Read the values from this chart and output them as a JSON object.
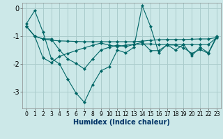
{
  "xlabel": "Humidex (Indice chaleur)",
  "background_color": "#cce8e8",
  "grid_color": "#aacccc",
  "line_color": "#006666",
  "x": [
    0,
    1,
    2,
    3,
    4,
    5,
    6,
    7,
    8,
    9,
    10,
    11,
    12,
    13,
    14,
    15,
    16,
    17,
    18,
    19,
    20,
    21,
    22,
    23
  ],
  "line1": [
    -0.55,
    -0.08,
    -0.85,
    -1.8,
    -2.0,
    -2.55,
    -3.05,
    -3.38,
    -2.75,
    -2.25,
    -2.1,
    -1.5,
    -1.6,
    -1.4,
    0.1,
    -0.65,
    -1.6,
    -1.3,
    -1.5,
    -1.3,
    -1.7,
    -1.4,
    -1.6,
    -1.0
  ],
  "line2": [
    -0.65,
    -1.0,
    -1.1,
    -1.15,
    -1.17,
    -1.18,
    -1.19,
    -1.2,
    -1.2,
    -1.2,
    -1.2,
    -1.2,
    -1.2,
    -1.2,
    -1.18,
    -1.15,
    -1.13,
    -1.12,
    -1.12,
    -1.12,
    -1.11,
    -1.1,
    -1.1,
    -1.05
  ],
  "line3": [
    -0.65,
    -1.0,
    -1.78,
    -1.95,
    -1.72,
    -1.62,
    -1.52,
    -1.42,
    -1.33,
    -1.25,
    -1.32,
    -1.38,
    -1.32,
    -1.3,
    -1.28,
    -1.28,
    -1.3,
    -1.3,
    -1.3,
    -1.3,
    -1.3,
    -1.3,
    -1.3,
    -1.05
  ],
  "line4": [
    -0.65,
    -1.0,
    -1.1,
    -1.1,
    -1.5,
    -1.82,
    -1.98,
    -2.18,
    -1.82,
    -1.5,
    -1.4,
    -1.32,
    -1.38,
    -1.3,
    -1.22,
    -1.52,
    -1.52,
    -1.32,
    -1.32,
    -1.42,
    -1.62,
    -1.48,
    -1.62,
    -1.05
  ],
  "ylim": [
    -3.6,
    0.2
  ],
  "xlim": [
    -0.5,
    23.5
  ],
  "yticks": [
    0,
    -1,
    -2,
    -3
  ],
  "xticks": [
    0,
    1,
    2,
    3,
    4,
    5,
    6,
    7,
    8,
    9,
    10,
    11,
    12,
    13,
    14,
    15,
    16,
    17,
    18,
    19,
    20,
    21,
    22,
    23
  ],
  "xlabel_color": "#003366",
  "xlabel_fontsize": 7,
  "ytick_fontsize": 7,
  "xtick_fontsize": 5.5
}
